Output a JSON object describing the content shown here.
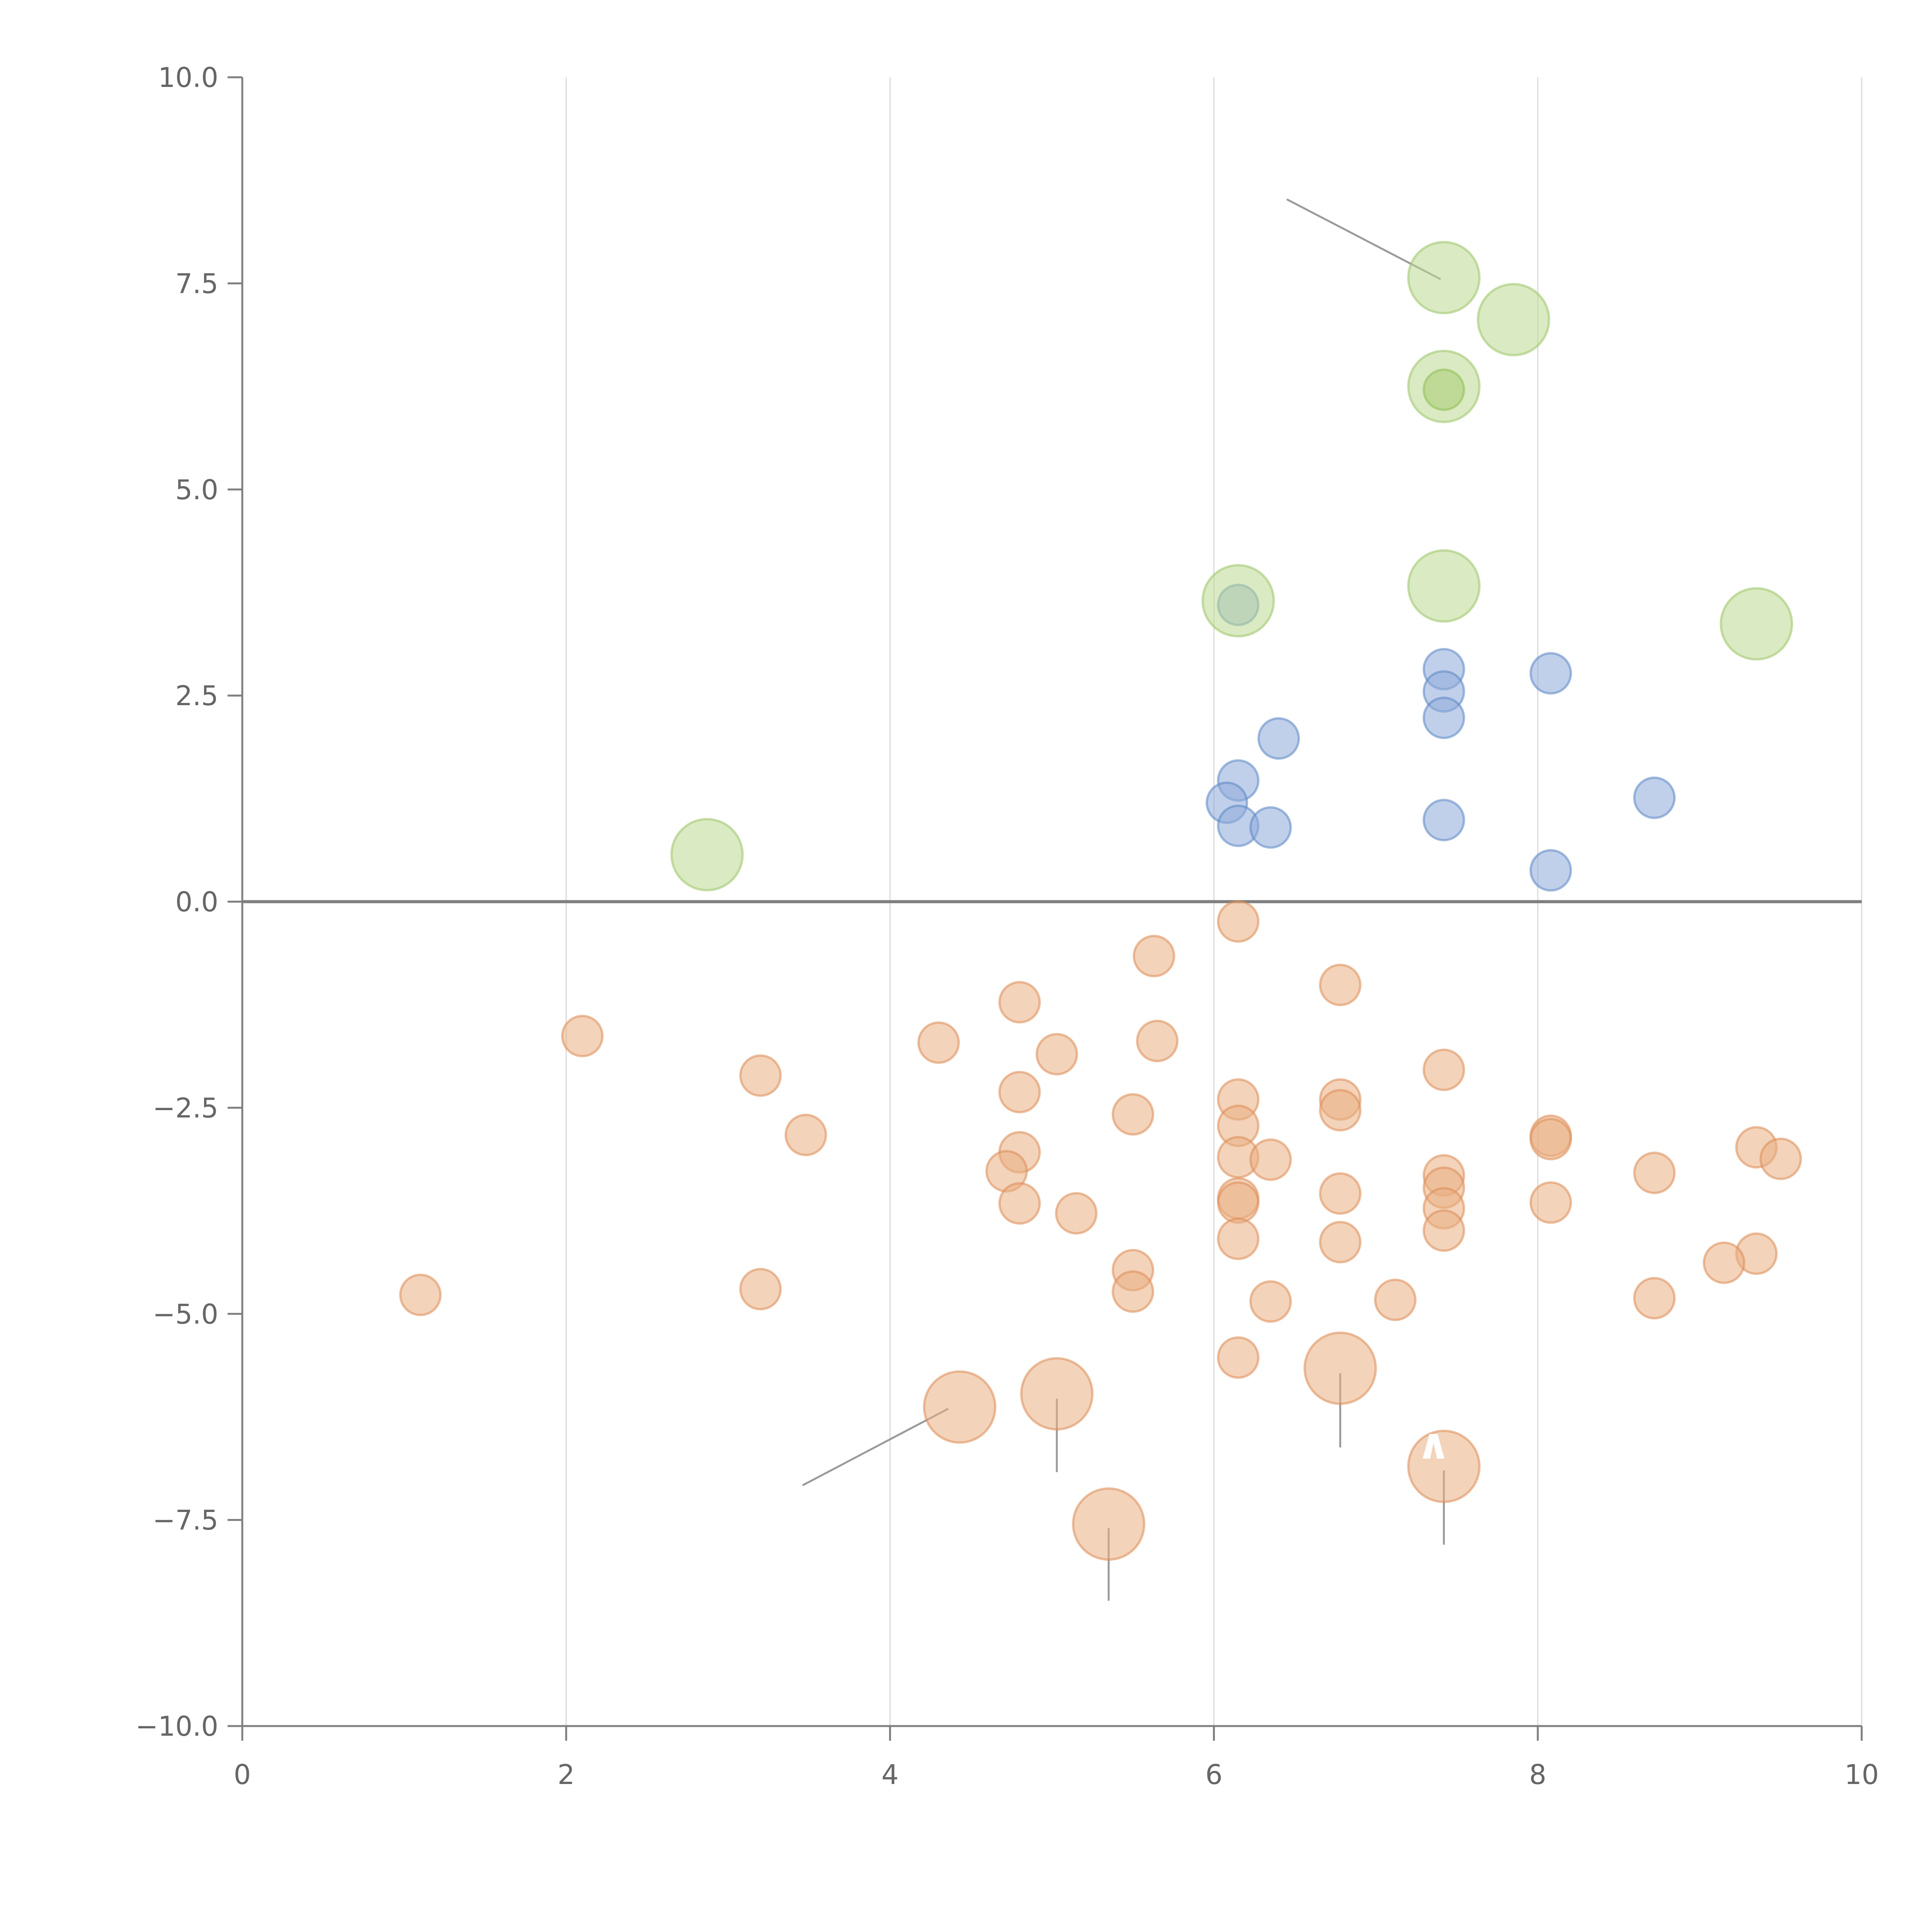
{
  "chart_data": {
    "type": "scatter",
    "title": "",
    "xlabel": "",
    "ylabel": "",
    "xlim": [
      0,
      10
    ],
    "ylim": [
      -10,
      10
    ],
    "x_ticks": [
      0,
      2,
      4,
      6,
      8,
      10
    ],
    "y_ticks": [
      10,
      7.5,
      5,
      2.5,
      0,
      -2.5,
      -5,
      -7.5,
      -10
    ],
    "x_tick_labels": [
      "0",
      "2",
      "4",
      "6",
      "8",
      "10"
    ],
    "y_tick_labels": [
      "10.0",
      "7.5",
      "5.0",
      "2.5",
      "0.0",
      "−2.5",
      "−5.0",
      "−7.5",
      "−10.0"
    ],
    "vertical_grid": true,
    "horizontal_grid": false,
    "zero_line": true,
    "legend": "none",
    "series": [
      {
        "name": "blue",
        "color": "#8eaad8",
        "stroke": "#5b86c5",
        "size": 1,
        "points": [
          [
            6.15,
            3.6
          ],
          [
            7.42,
            2.82
          ],
          [
            7.42,
            2.55
          ],
          [
            8.08,
            2.77
          ],
          [
            7.42,
            2.23
          ],
          [
            6.4,
            1.98
          ],
          [
            6.15,
            1.47
          ],
          [
            6.08,
            1.2
          ],
          [
            6.15,
            0.92
          ],
          [
            6.35,
            0.9
          ],
          [
            7.42,
            0.99
          ],
          [
            8.72,
            1.26
          ],
          [
            8.08,
            0.38
          ]
        ]
      },
      {
        "name": "green",
        "color": "#bcd88f",
        "stroke": "#9cc56a",
        "size": 2,
        "points": [
          [
            7.42,
            7.57
          ],
          [
            7.85,
            7.06
          ],
          [
            7.42,
            6.25
          ],
          [
            6.15,
            3.65
          ],
          [
            7.42,
            3.83
          ],
          [
            9.35,
            3.37
          ],
          [
            2.87,
            0.57
          ]
        ]
      },
      {
        "name": "green-small",
        "color": "#a8cc73",
        "stroke": "#8fbd5a",
        "size": 1,
        "points": [
          [
            7.42,
            6.21
          ]
        ]
      },
      {
        "name": "orange",
        "color": "#eaae82",
        "stroke": "#dc8d55",
        "size": 1,
        "points": [
          [
            6.15,
            -0.24
          ],
          [
            5.63,
            -0.66
          ],
          [
            6.78,
            -1.01
          ],
          [
            4.8,
            -1.22
          ],
          [
            2.1,
            -1.63
          ],
          [
            4.3,
            -1.71
          ],
          [
            5.65,
            -1.69
          ],
          [
            5.03,
            -1.85
          ],
          [
            3.2,
            -2.11
          ],
          [
            7.42,
            -2.04
          ],
          [
            4.8,
            -2.31
          ],
          [
            6.15,
            -2.4
          ],
          [
            6.78,
            -2.4
          ],
          [
            6.78,
            -2.53
          ],
          [
            3.48,
            -2.83
          ],
          [
            5.5,
            -2.58
          ],
          [
            6.15,
            -2.72
          ],
          [
            8.08,
            -2.84
          ],
          [
            8.08,
            -2.88
          ],
          [
            4.8,
            -3.04
          ],
          [
            6.15,
            -3.1
          ],
          [
            6.35,
            -3.13
          ],
          [
            9.35,
            -2.98
          ],
          [
            9.5,
            -3.12
          ],
          [
            4.72,
            -3.27
          ],
          [
            7.42,
            -3.32
          ],
          [
            8.72,
            -3.29
          ],
          [
            7.42,
            -3.47
          ],
          [
            6.78,
            -3.54
          ],
          [
            6.15,
            -3.6
          ],
          [
            6.15,
            -3.65
          ],
          [
            8.08,
            -3.65
          ],
          [
            4.8,
            -3.66
          ],
          [
            5.15,
            -3.78
          ],
          [
            7.42,
            -3.72
          ],
          [
            7.42,
            -3.99
          ],
          [
            6.15,
            -4.09
          ],
          [
            6.78,
            -4.13
          ],
          [
            5.5,
            -4.47
          ],
          [
            9.35,
            -4.27
          ],
          [
            9.15,
            -4.38
          ],
          [
            1.1,
            -4.77
          ],
          [
            3.2,
            -4.7
          ],
          [
            5.5,
            -4.73
          ],
          [
            6.35,
            -4.85
          ],
          [
            7.12,
            -4.83
          ],
          [
            8.72,
            -4.81
          ],
          [
            6.15,
            -5.53
          ]
        ]
      },
      {
        "name": "orange-large",
        "color": "#eaae82",
        "stroke": "#dc8d55",
        "size": 2,
        "points": [
          [
            6.78,
            -5.66
          ],
          [
            4.43,
            -6.13
          ],
          [
            5.03,
            -5.97
          ],
          [
            7.42,
            -6.85
          ],
          [
            5.35,
            -7.55
          ]
        ]
      }
    ],
    "annotations": [
      {
        "label": "",
        "color": "dark"
      },
      {
        "label": "",
        "color": "light"
      },
      {
        "label": "",
        "color": "light"
      },
      {
        "label": "",
        "color": "light"
      },
      {
        "label": "",
        "color": "dark"
      },
      {
        "label": "",
        "color": "dark"
      },
      {
        "label": "",
        "color": "dark"
      },
      {
        "label": "",
        "color": "dark"
      },
      {
        "label": "",
        "color": "dark"
      }
    ],
    "callout_text": "∧"
  }
}
